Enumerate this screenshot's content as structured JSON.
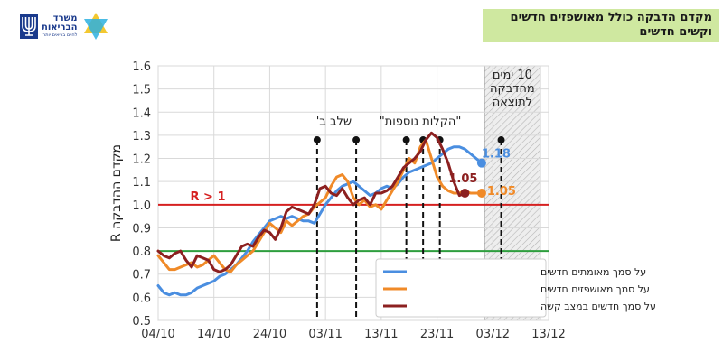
{
  "header": {
    "title_line1": "מקדם הדבקה כולל מאושפזים חדשים",
    "title_line2": "וקשים חדשים",
    "logo_line1": "משרד",
    "logo_line2": "הבריאות",
    "logo_line3": "לחיים בריאים יותר"
  },
  "chart_data": {
    "type": "line",
    "ylabel": "מקדם ההדבקה R",
    "ylim": [
      0.5,
      1.6
    ],
    "yticks": [
      "0.5",
      "0.6",
      "0.7",
      "0.8",
      "0.9",
      "1.0",
      "1.1",
      "1.2",
      "1.3",
      "1.4",
      "1.5",
      "1.6"
    ],
    "xlim": [
      0,
      70
    ],
    "xticks": [
      {
        "v": 0,
        "label": "04/10"
      },
      {
        "v": 10,
        "label": "14/10"
      },
      {
        "v": 20,
        "label": "24/10"
      },
      {
        "v": 30,
        "label": "03/11"
      },
      {
        "v": 40,
        "label": "13/11"
      },
      {
        "v": 50,
        "label": "23/11"
      },
      {
        "v": 60,
        "label": "03/12"
      },
      {
        "v": 70,
        "label": "13/12"
      }
    ],
    "grid": true,
    "reference_lines": [
      {
        "y": 1.0,
        "color": "#d62020",
        "label": "R > 1"
      },
      {
        "y": 0.8,
        "color": "#2e9e3e",
        "label": ""
      }
    ],
    "shaded_region": {
      "x0": 58.5,
      "x1": 68.5,
      "label": [
        "10 ימים",
        "מהדבקה",
        "לתוצאה"
      ]
    },
    "events": [
      {
        "x": 28.5,
        "y": 1.28
      },
      {
        "x": 35.5,
        "y": 1.28
      },
      {
        "x": 44.5,
        "y": 1.28
      },
      {
        "x": 47.5,
        "y": 1.28
      },
      {
        "x": 50.5,
        "y": 1.28
      },
      {
        "x": 61.5,
        "y": 1.28
      }
    ],
    "event_labels": [
      {
        "text": "שלב ב'",
        "x": 31.5,
        "y": 1.36
      },
      {
        "text": "\"הקלות נוספות\"",
        "x": 47.0,
        "y": 1.36
      }
    ],
    "legend_position": "bottom-right",
    "series": [
      {
        "name": "על סמך מאומתים חדשים",
        "color": "#4a8ee0",
        "end_label": "1.18",
        "x": [
          0,
          1,
          2,
          3,
          4,
          5,
          6,
          7,
          8,
          9,
          10,
          11,
          12,
          13,
          14,
          15,
          16,
          17,
          18,
          19,
          20,
          21,
          22,
          23,
          24,
          25,
          26,
          27,
          28,
          29,
          30,
          31,
          32,
          33,
          34,
          35,
          36,
          37,
          38,
          39,
          40,
          41,
          42,
          43,
          44,
          45,
          46,
          47,
          48,
          49,
          50,
          51,
          52,
          53,
          54,
          55,
          56,
          57,
          58
        ],
        "values": [
          0.65,
          0.62,
          0.61,
          0.62,
          0.61,
          0.61,
          0.62,
          0.64,
          0.65,
          0.66,
          0.67,
          0.69,
          0.7,
          0.72,
          0.74,
          0.77,
          0.8,
          0.84,
          0.87,
          0.9,
          0.93,
          0.94,
          0.95,
          0.94,
          0.95,
          0.94,
          0.93,
          0.93,
          0.92,
          0.96,
          1.0,
          1.03,
          1.06,
          1.08,
          1.09,
          1.1,
          1.08,
          1.06,
          1.04,
          1.05,
          1.07,
          1.08,
          1.07,
          1.09,
          1.12,
          1.14,
          1.15,
          1.16,
          1.17,
          1.18,
          1.2,
          1.22,
          1.24,
          1.25,
          1.25,
          1.24,
          1.22,
          1.2,
          1.18
        ]
      },
      {
        "name": "על סמך מאושפזים חדשים",
        "color": "#f08a28",
        "end_label": "1.05",
        "x": [
          0,
          1,
          2,
          3,
          4,
          5,
          6,
          7,
          8,
          9,
          10,
          11,
          12,
          13,
          14,
          15,
          16,
          17,
          18,
          19,
          20,
          21,
          22,
          23,
          24,
          25,
          26,
          27,
          28,
          29,
          30,
          31,
          32,
          33,
          34,
          35,
          36,
          37,
          38,
          39,
          40,
          41,
          42,
          43,
          44,
          45,
          46,
          47,
          48,
          49,
          50,
          51,
          52,
          53,
          54,
          55,
          56,
          57,
          58
        ],
        "values": [
          0.78,
          0.75,
          0.72,
          0.72,
          0.73,
          0.74,
          0.75,
          0.73,
          0.74,
          0.76,
          0.78,
          0.75,
          0.72,
          0.71,
          0.74,
          0.76,
          0.78,
          0.8,
          0.84,
          0.88,
          0.92,
          0.9,
          0.88,
          0.93,
          0.91,
          0.93,
          0.95,
          0.96,
          0.99,
          1.01,
          1.03,
          1.08,
          1.12,
          1.13,
          1.1,
          1.03,
          1.0,
          1.02,
          0.99,
          1.0,
          0.98,
          1.02,
          1.06,
          1.1,
          1.15,
          1.2,
          1.18,
          1.25,
          1.28,
          1.2,
          1.12,
          1.08,
          1.06,
          1.05,
          1.05,
          1.06,
          1.05,
          1.05,
          1.05
        ]
      },
      {
        "name": "על סמך חדשים במצב קשה",
        "color": "#8c2020",
        "end_label": "1.05",
        "x": [
          0,
          1,
          2,
          3,
          4,
          5,
          6,
          7,
          8,
          9,
          10,
          11,
          12,
          13,
          14,
          15,
          16,
          17,
          18,
          19,
          20,
          21,
          22,
          23,
          24,
          25,
          26,
          27,
          28,
          29,
          30,
          31,
          32,
          33,
          34,
          35,
          36,
          37,
          38,
          39,
          40,
          41,
          42,
          43,
          44,
          45,
          46,
          47,
          48,
          49,
          50,
          51,
          52,
          53,
          54,
          55
        ],
        "values": [
          0.8,
          0.78,
          0.77,
          0.79,
          0.8,
          0.76,
          0.73,
          0.78,
          0.77,
          0.76,
          0.72,
          0.71,
          0.72,
          0.74,
          0.78,
          0.82,
          0.83,
          0.82,
          0.86,
          0.89,
          0.88,
          0.85,
          0.9,
          0.97,
          0.99,
          0.98,
          0.97,
          0.96,
          1.0,
          1.07,
          1.08,
          1.05,
          1.04,
          1.07,
          1.03,
          1.0,
          1.02,
          1.03,
          1.0,
          1.05,
          1.05,
          1.06,
          1.08,
          1.12,
          1.16,
          1.18,
          1.2,
          1.23,
          1.28,
          1.31,
          1.29,
          1.24,
          1.18,
          1.1,
          1.04,
          1.05
        ]
      }
    ]
  }
}
